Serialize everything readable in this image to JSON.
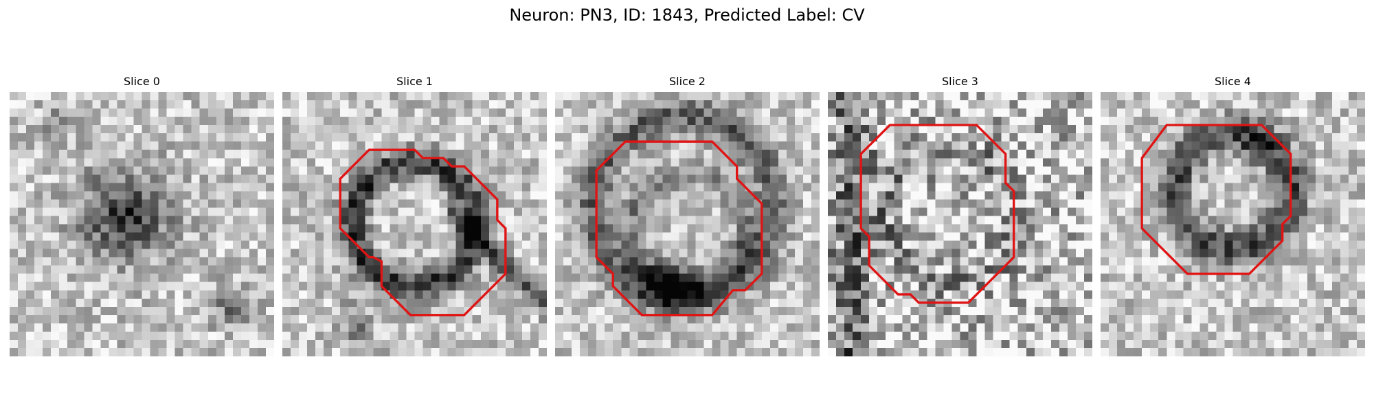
{
  "figure": {
    "title": "Neuron: PN3, ID: 1843, Predicted Label: CV"
  },
  "colors": {
    "contour": "#e01414"
  },
  "panels": [
    {
      "title": "Slice 0",
      "has_contour": false
    },
    {
      "title": "Slice 1",
      "has_contour": true
    },
    {
      "title": "Slice 2",
      "has_contour": true
    },
    {
      "title": "Slice 3",
      "has_contour": true
    },
    {
      "title": "Slice 4",
      "has_contour": true
    }
  ]
}
